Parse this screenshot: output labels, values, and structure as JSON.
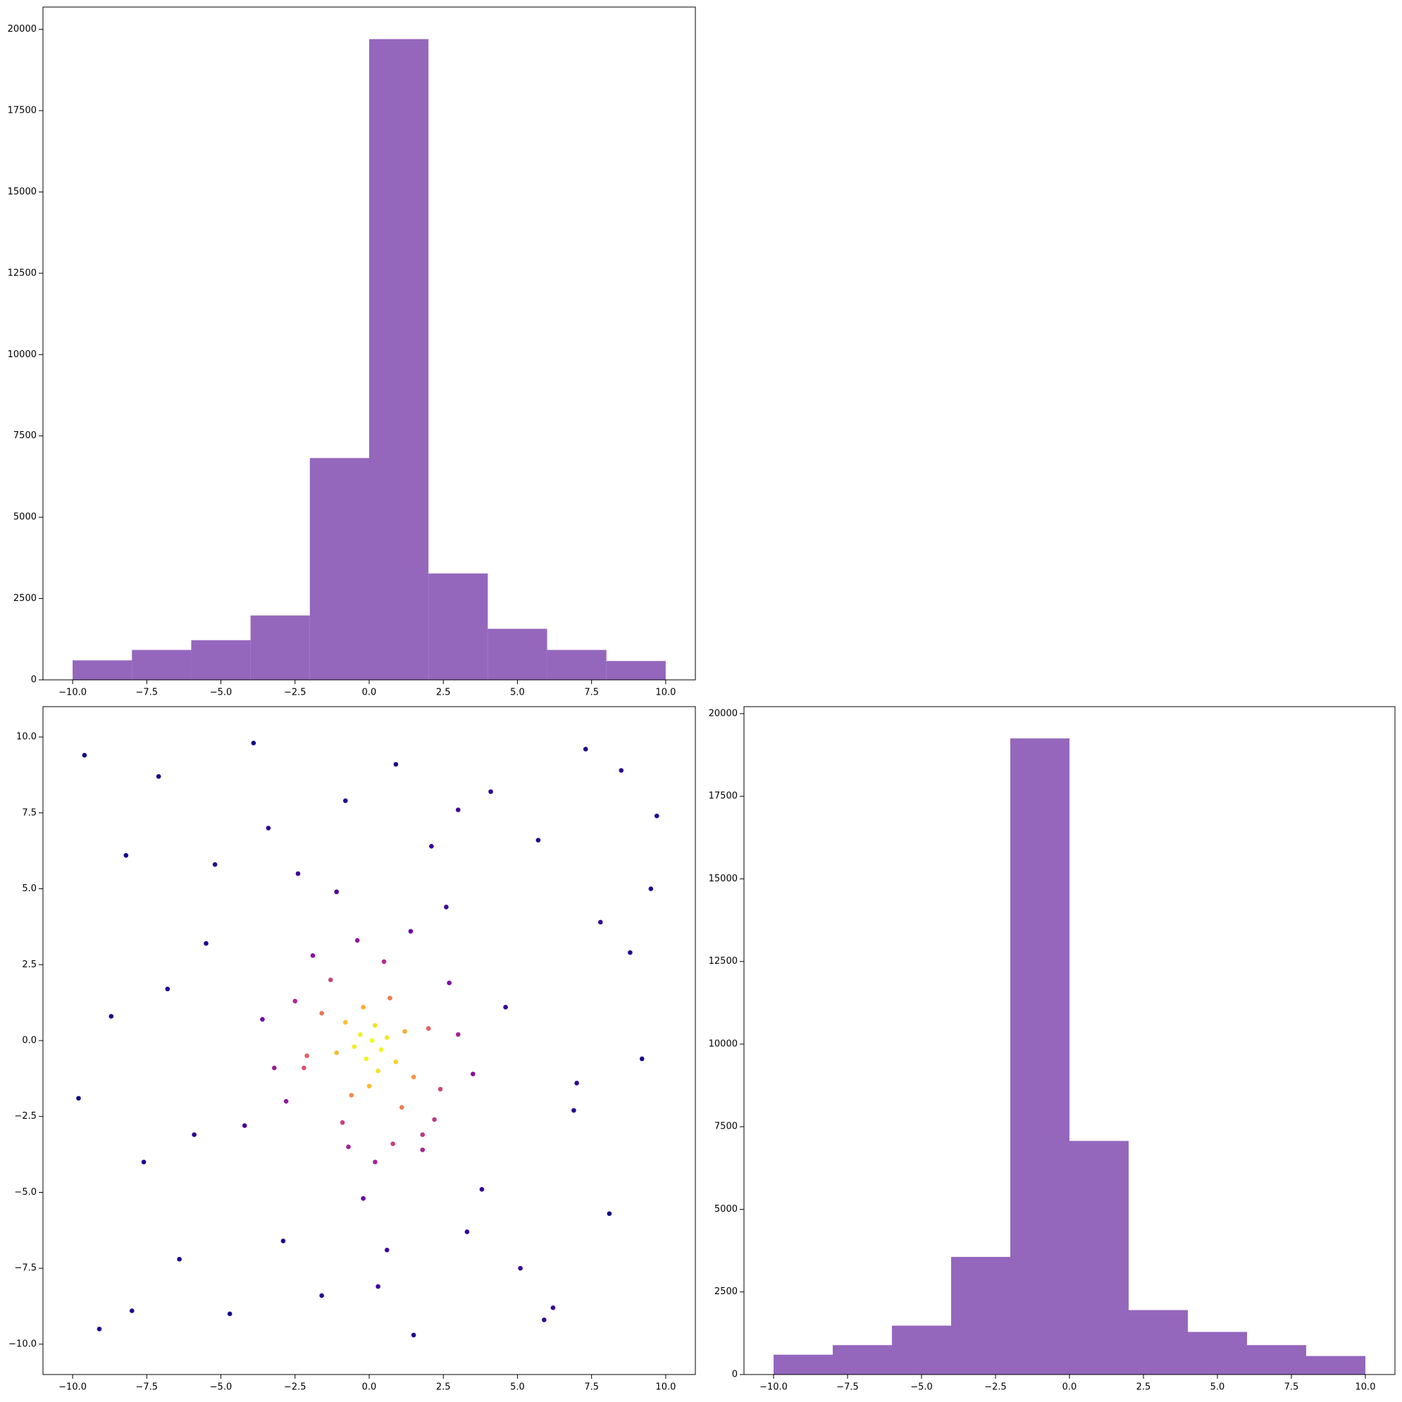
{
  "chart_data": [
    {
      "type": "histogram",
      "color": "#9467bd",
      "bins": [
        -10,
        -8,
        -6,
        -4,
        -2,
        0,
        2,
        4,
        6,
        8,
        10
      ],
      "values": [
        600,
        920,
        1220,
        1980,
        6820,
        19700,
        3270,
        1570,
        920,
        580
      ],
      "xlim": [
        -11,
        11
      ],
      "ylim": [
        0,
        20685
      ],
      "xticks": [
        {
          "value": -10,
          "label": "−10.0"
        },
        {
          "value": -7.5,
          "label": "−7.5"
        },
        {
          "value": -5,
          "label": "−5.0"
        },
        {
          "value": -2.5,
          "label": "−2.5"
        },
        {
          "value": 0,
          "label": "0.0"
        },
        2.5,
        {
          "value": 5,
          "label": "5.0"
        },
        7.5,
        {
          "value": 10,
          "label": "10.0"
        }
      ],
      "yticks": [
        0,
        2500,
        5000,
        7500,
        10000,
        12500,
        15000,
        17500,
        20000
      ]
    },
    {
      "type": "scatter",
      "colormap": "plasma",
      "color_by": "density",
      "x": [
        -9.6,
        -8.2,
        -7.1,
        -5.5,
        -3.9,
        -2.4,
        -0.8,
        0.9,
        2.6,
        4.1,
        5.7,
        7.3,
        8.8,
        9.7,
        -9.1,
        -6.4,
        -4.7,
        -1.6,
        1.5,
        3.3,
        6.2,
        8.1,
        -8.7,
        -5.9,
        -2.9,
        0.3,
        3.8,
        6.9,
        9.2,
        -7.6,
        -3.4,
        -0.2,
        2.1,
        5.1,
        7.8,
        -9.8,
        -6.8,
        -4.2,
        -1.1,
        1.8,
        4.6,
        7.0,
        9.5,
        -8.0,
        -5.2,
        -2.2,
        0.6,
        3.0,
        5.9,
        8.5,
        0.1,
        -0.3,
        0.4,
        0.2,
        -0.1,
        0.6,
        -0.5,
        0.9,
        -0.8,
        1.2,
        -1.1,
        0.3,
        -0.2,
        1.5,
        -1.6,
        0.0,
        0.7,
        -0.6,
        2.0,
        -2.1,
        1.1,
        -1.3,
        2.4,
        -2.5,
        0.5,
        -0.9,
        3.0,
        -3.2,
        1.8,
        -1.9,
        0.8,
        -0.4,
        2.7,
        -2.8,
        1.4,
        3.5,
        -3.6,
        0.2,
        -0.7,
        2.2
      ],
      "y": [
        9.4,
        6.1,
        8.7,
        3.2,
        9.8,
        5.5,
        7.9,
        9.1,
        4.4,
        8.2,
        6.6,
        9.6,
        2.9,
        7.4,
        -9.5,
        -7.2,
        -9.0,
        -8.4,
        -9.7,
        -6.3,
        -8.8,
        -5.7,
        0.8,
        -3.1,
        -6.6,
        -8.1,
        -4.9,
        -2.3,
        -0.6,
        -4.0,
        7.0,
        -5.2,
        6.4,
        -7.5,
        3.9,
        -1.9,
        1.7,
        -2.8,
        4.9,
        -3.6,
        1.1,
        -1.4,
        5.0,
        -8.9,
        5.8,
        -0.9,
        -6.9,
        7.6,
        -9.2,
        8.9,
        0.0,
        0.2,
        -0.3,
        0.5,
        -0.6,
        0.1,
        -0.2,
        -0.7,
        0.6,
        0.3,
        -0.4,
        -1.0,
        1.1,
        -1.2,
        0.9,
        -1.5,
        1.4,
        -1.8,
        0.4,
        -0.5,
        -2.2,
        2.0,
        -1.6,
        1.3,
        2.6,
        -2.7,
        0.2,
        -0.9,
        -3.1,
        2.8,
        -3.4,
        3.3,
        1.9,
        -2.0,
        3.6,
        -1.1,
        0.7,
        -4.0,
        -3.5,
        -2.6
      ],
      "xlim": [
        -11,
        11
      ],
      "ylim": [
        -11,
        11
      ],
      "xticks": [
        {
          "value": -10,
          "label": "−10.0"
        },
        {
          "value": -7.5,
          "label": "−7.5"
        },
        {
          "value": -5,
          "label": "−5.0"
        },
        {
          "value": -2.5,
          "label": "−2.5"
        },
        {
          "value": 0,
          "label": "0.0"
        },
        2.5,
        {
          "value": 5,
          "label": "5.0"
        },
        7.5,
        {
          "value": 10,
          "label": "10.0"
        }
      ],
      "yticks": [
        {
          "value": -10,
          "label": "−10.0"
        },
        {
          "value": -7.5,
          "label": "−7.5"
        },
        {
          "value": -5,
          "label": "−5.0"
        },
        {
          "value": -2.5,
          "label": "−2.5"
        },
        {
          "value": 0,
          "label": "0.0"
        },
        2.5,
        {
          "value": 5,
          "label": "5.0"
        },
        7.5,
        {
          "value": 10,
          "label": "10.0"
        }
      ]
    },
    {
      "type": "histogram",
      "color": "#9467bd",
      "bins": [
        -10,
        -8,
        -6,
        -4,
        -2,
        0,
        2,
        4,
        6,
        8,
        10
      ],
      "values": [
        600,
        890,
        1480,
        3560,
        19250,
        7070,
        1950,
        1290,
        890,
        560
      ],
      "xlim": [
        -11,
        11
      ],
      "ylim": [
        0,
        20212
      ],
      "xticks": [
        {
          "value": -10,
          "label": "−10.0"
        },
        {
          "value": -7.5,
          "label": "−7.5"
        },
        {
          "value": -5,
          "label": "−5.0"
        },
        {
          "value": -2.5,
          "label": "−2.5"
        },
        {
          "value": 0,
          "label": "0.0"
        },
        2.5,
        {
          "value": 5,
          "label": "5.0"
        },
        7.5,
        {
          "value": 10,
          "label": "10.0"
        }
      ],
      "yticks": [
        0,
        2500,
        5000,
        7500,
        10000,
        12500,
        15000,
        17500,
        20000
      ]
    }
  ]
}
